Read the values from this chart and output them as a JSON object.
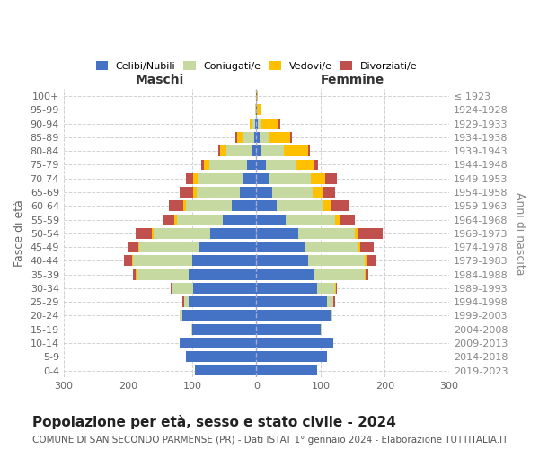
{
  "age_groups": [
    "0-4",
    "5-9",
    "10-14",
    "15-19",
    "20-24",
    "25-29",
    "30-34",
    "35-39",
    "40-44",
    "45-49",
    "50-54",
    "55-59",
    "60-64",
    "65-69",
    "70-74",
    "75-79",
    "80-84",
    "85-89",
    "90-94",
    "95-99",
    "100+"
  ],
  "birth_years": [
    "2019-2023",
    "2014-2018",
    "2009-2013",
    "2004-2008",
    "1999-2003",
    "1994-1998",
    "1989-1993",
    "1984-1988",
    "1979-1983",
    "1974-1978",
    "1969-1973",
    "1964-1968",
    "1959-1963",
    "1954-1958",
    "1949-1953",
    "1944-1948",
    "1939-1943",
    "1934-1938",
    "1929-1933",
    "1924-1928",
    "≤ 1923"
  ],
  "maschi_celibi": [
    95,
    110,
    120,
    100,
    115,
    105,
    98,
    105,
    100,
    90,
    72,
    52,
    38,
    25,
    20,
    15,
    8,
    4,
    2,
    1,
    1
  ],
  "maschi_coniugati": [
    0,
    0,
    0,
    1,
    4,
    8,
    33,
    82,
    92,
    92,
    88,
    72,
    72,
    68,
    72,
    58,
    38,
    18,
    5,
    1,
    0
  ],
  "maschi_vedovi": [
    0,
    0,
    0,
    0,
    0,
    0,
    0,
    1,
    2,
    2,
    3,
    4,
    4,
    5,
    6,
    8,
    10,
    8,
    4,
    0,
    0
  ],
  "maschi_divorziati": [
    0,
    0,
    0,
    0,
    0,
    2,
    2,
    4,
    12,
    15,
    25,
    18,
    22,
    22,
    12,
    5,
    3,
    2,
    0,
    0,
    0
  ],
  "femmine_nubili": [
    95,
    110,
    120,
    100,
    115,
    110,
    95,
    90,
    80,
    75,
    65,
    45,
    32,
    25,
    20,
    15,
    8,
    5,
    2,
    1,
    1
  ],
  "femmine_coniugate": [
    0,
    0,
    0,
    1,
    4,
    10,
    28,
    78,
    88,
    82,
    88,
    78,
    72,
    62,
    65,
    48,
    35,
    15,
    5,
    0,
    0
  ],
  "femmine_vedove": [
    0,
    0,
    0,
    0,
    0,
    0,
    1,
    2,
    3,
    4,
    6,
    8,
    12,
    18,
    22,
    28,
    38,
    32,
    28,
    5,
    1
  ],
  "femmine_divorziate": [
    0,
    0,
    0,
    0,
    0,
    2,
    2,
    4,
    16,
    22,
    38,
    22,
    28,
    18,
    18,
    5,
    3,
    3,
    2,
    2,
    0
  ],
  "colors": {
    "celibi": "#4472c4",
    "coniugati": "#c5d9a0",
    "vedovi": "#ffc000",
    "divorziati": "#c0504d"
  },
  "xlim": 300,
  "title": "Popolazione per età, sesso e stato civile - 2024",
  "subtitle": "COMUNE DI SAN SECONDO PARMENSE (PR) - Dati ISTAT 1° gennaio 2024 - Elaborazione TUTTITALIA.IT",
  "ylabel_left": "Fasce di età",
  "ylabel_right": "Anni di nascita",
  "legend_labels": [
    "Celibi/Nubili",
    "Coniugati/e",
    "Vedovi/e",
    "Divorziati/e"
  ],
  "maschi_label": "Maschi",
  "femmine_label": "Femmine",
  "background_color": "#ffffff",
  "grid_color": "#cccccc",
  "title_fontsize": 11,
  "subtitle_fontsize": 7.5,
  "label_fontsize": 9,
  "tick_fontsize": 8
}
